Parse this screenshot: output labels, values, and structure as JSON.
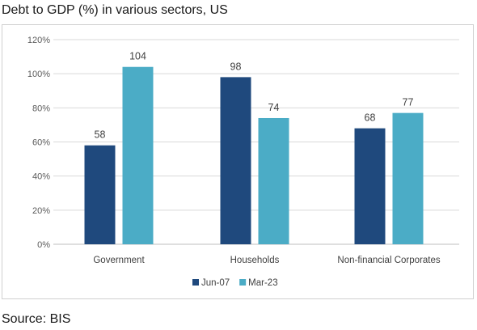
{
  "title": "Debt to GDP (%) in various sectors, US",
  "source": "Source: BIS",
  "chart_data": {
    "type": "bar",
    "title": "Debt to GDP (%) in various sectors, US",
    "categories": [
      "Government",
      "Households",
      "Non-financial Corporates"
    ],
    "series": [
      {
        "name": "Jun-07",
        "values": [
          58,
          98,
          68
        ],
        "color": "#1f497d"
      },
      {
        "name": "Mar-23",
        "values": [
          104,
          74,
          77
        ],
        "color": "#4bacc6"
      }
    ],
    "y_ticks": [
      "0%",
      "20%",
      "40%",
      "60%",
      "80%",
      "100%",
      "120%"
    ],
    "ylim": [
      0,
      120
    ],
    "grid": true,
    "legend": "bottom"
  }
}
